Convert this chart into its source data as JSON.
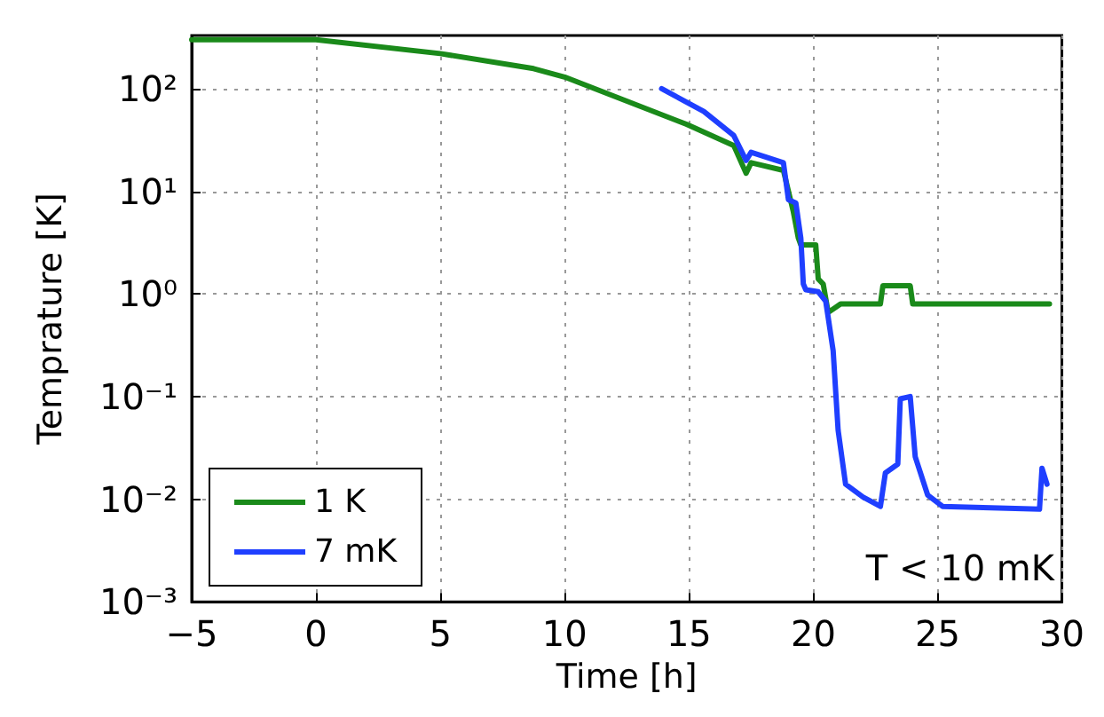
{
  "chart_data": {
    "type": "line",
    "xlabel": "Time [h]",
    "ylabel": "Temprature [K]",
    "log": "y",
    "grid": true,
    "legend": "bottom left",
    "line_style": "solid",
    "marker": "none",
    "xlim": [
      -5,
      30
    ],
    "xticks": [
      -5,
      0,
      5,
      10,
      15,
      20,
      25,
      30
    ],
    "ylim": [
      0.001,
      330
    ],
    "yticks": [
      {
        "value": 0.001,
        "label": "10⁻³"
      },
      {
        "value": 0.01,
        "label": "10⁻²"
      },
      {
        "value": 0.1,
        "label": "10⁻¹"
      },
      {
        "value": 1,
        "label": "10⁰"
      },
      {
        "value": 10,
        "label": "10¹"
      },
      {
        "value": 100,
        "label": "10²"
      }
    ],
    "annotations": [
      "T < 10 mK"
    ],
    "series": [
      {
        "name": "1 K",
        "color": "#1a8a1a",
        "x": [
          -5,
          0,
          5,
          8.75,
          10,
          14.9,
          16.8,
          17.3,
          17.5,
          18.8,
          19.2,
          19.4,
          19.5,
          20.1,
          20.2,
          20.4,
          20.6,
          21.1,
          22.7,
          22.8,
          23.9,
          24.0,
          29.5
        ],
        "values": [
          300,
          300,
          220,
          157,
          130,
          45,
          28,
          15,
          19,
          16,
          6.3,
          3.5,
          3.0,
          3.0,
          1.4,
          1.25,
          0.66,
          0.8,
          0.8,
          1.2,
          1.2,
          0.8,
          0.8
        ]
      },
      {
        "name": "7 mK",
        "color": "#1f3fff",
        "x": [
          13.9,
          15.6,
          16.8,
          17.3,
          17.5,
          18.8,
          19.0,
          19.3,
          19.5,
          19.6,
          19.7,
          20.2,
          20.5,
          20.6,
          20.8,
          21.0,
          21.3,
          22.0,
          22.7,
          22.9,
          23.4,
          23.5,
          23.9,
          24.1,
          24.6,
          25.2,
          29.1,
          29.2,
          29.4
        ],
        "values": [
          100,
          60,
          35,
          20,
          24,
          19,
          8.3,
          7.7,
          3.5,
          1.25,
          1.1,
          1.05,
          0.85,
          0.59,
          0.28,
          0.047,
          0.014,
          0.0105,
          0.0085,
          0.018,
          0.022,
          0.095,
          0.1,
          0.026,
          0.011,
          0.0085,
          0.008,
          0.02,
          0.014
        ]
      }
    ]
  }
}
